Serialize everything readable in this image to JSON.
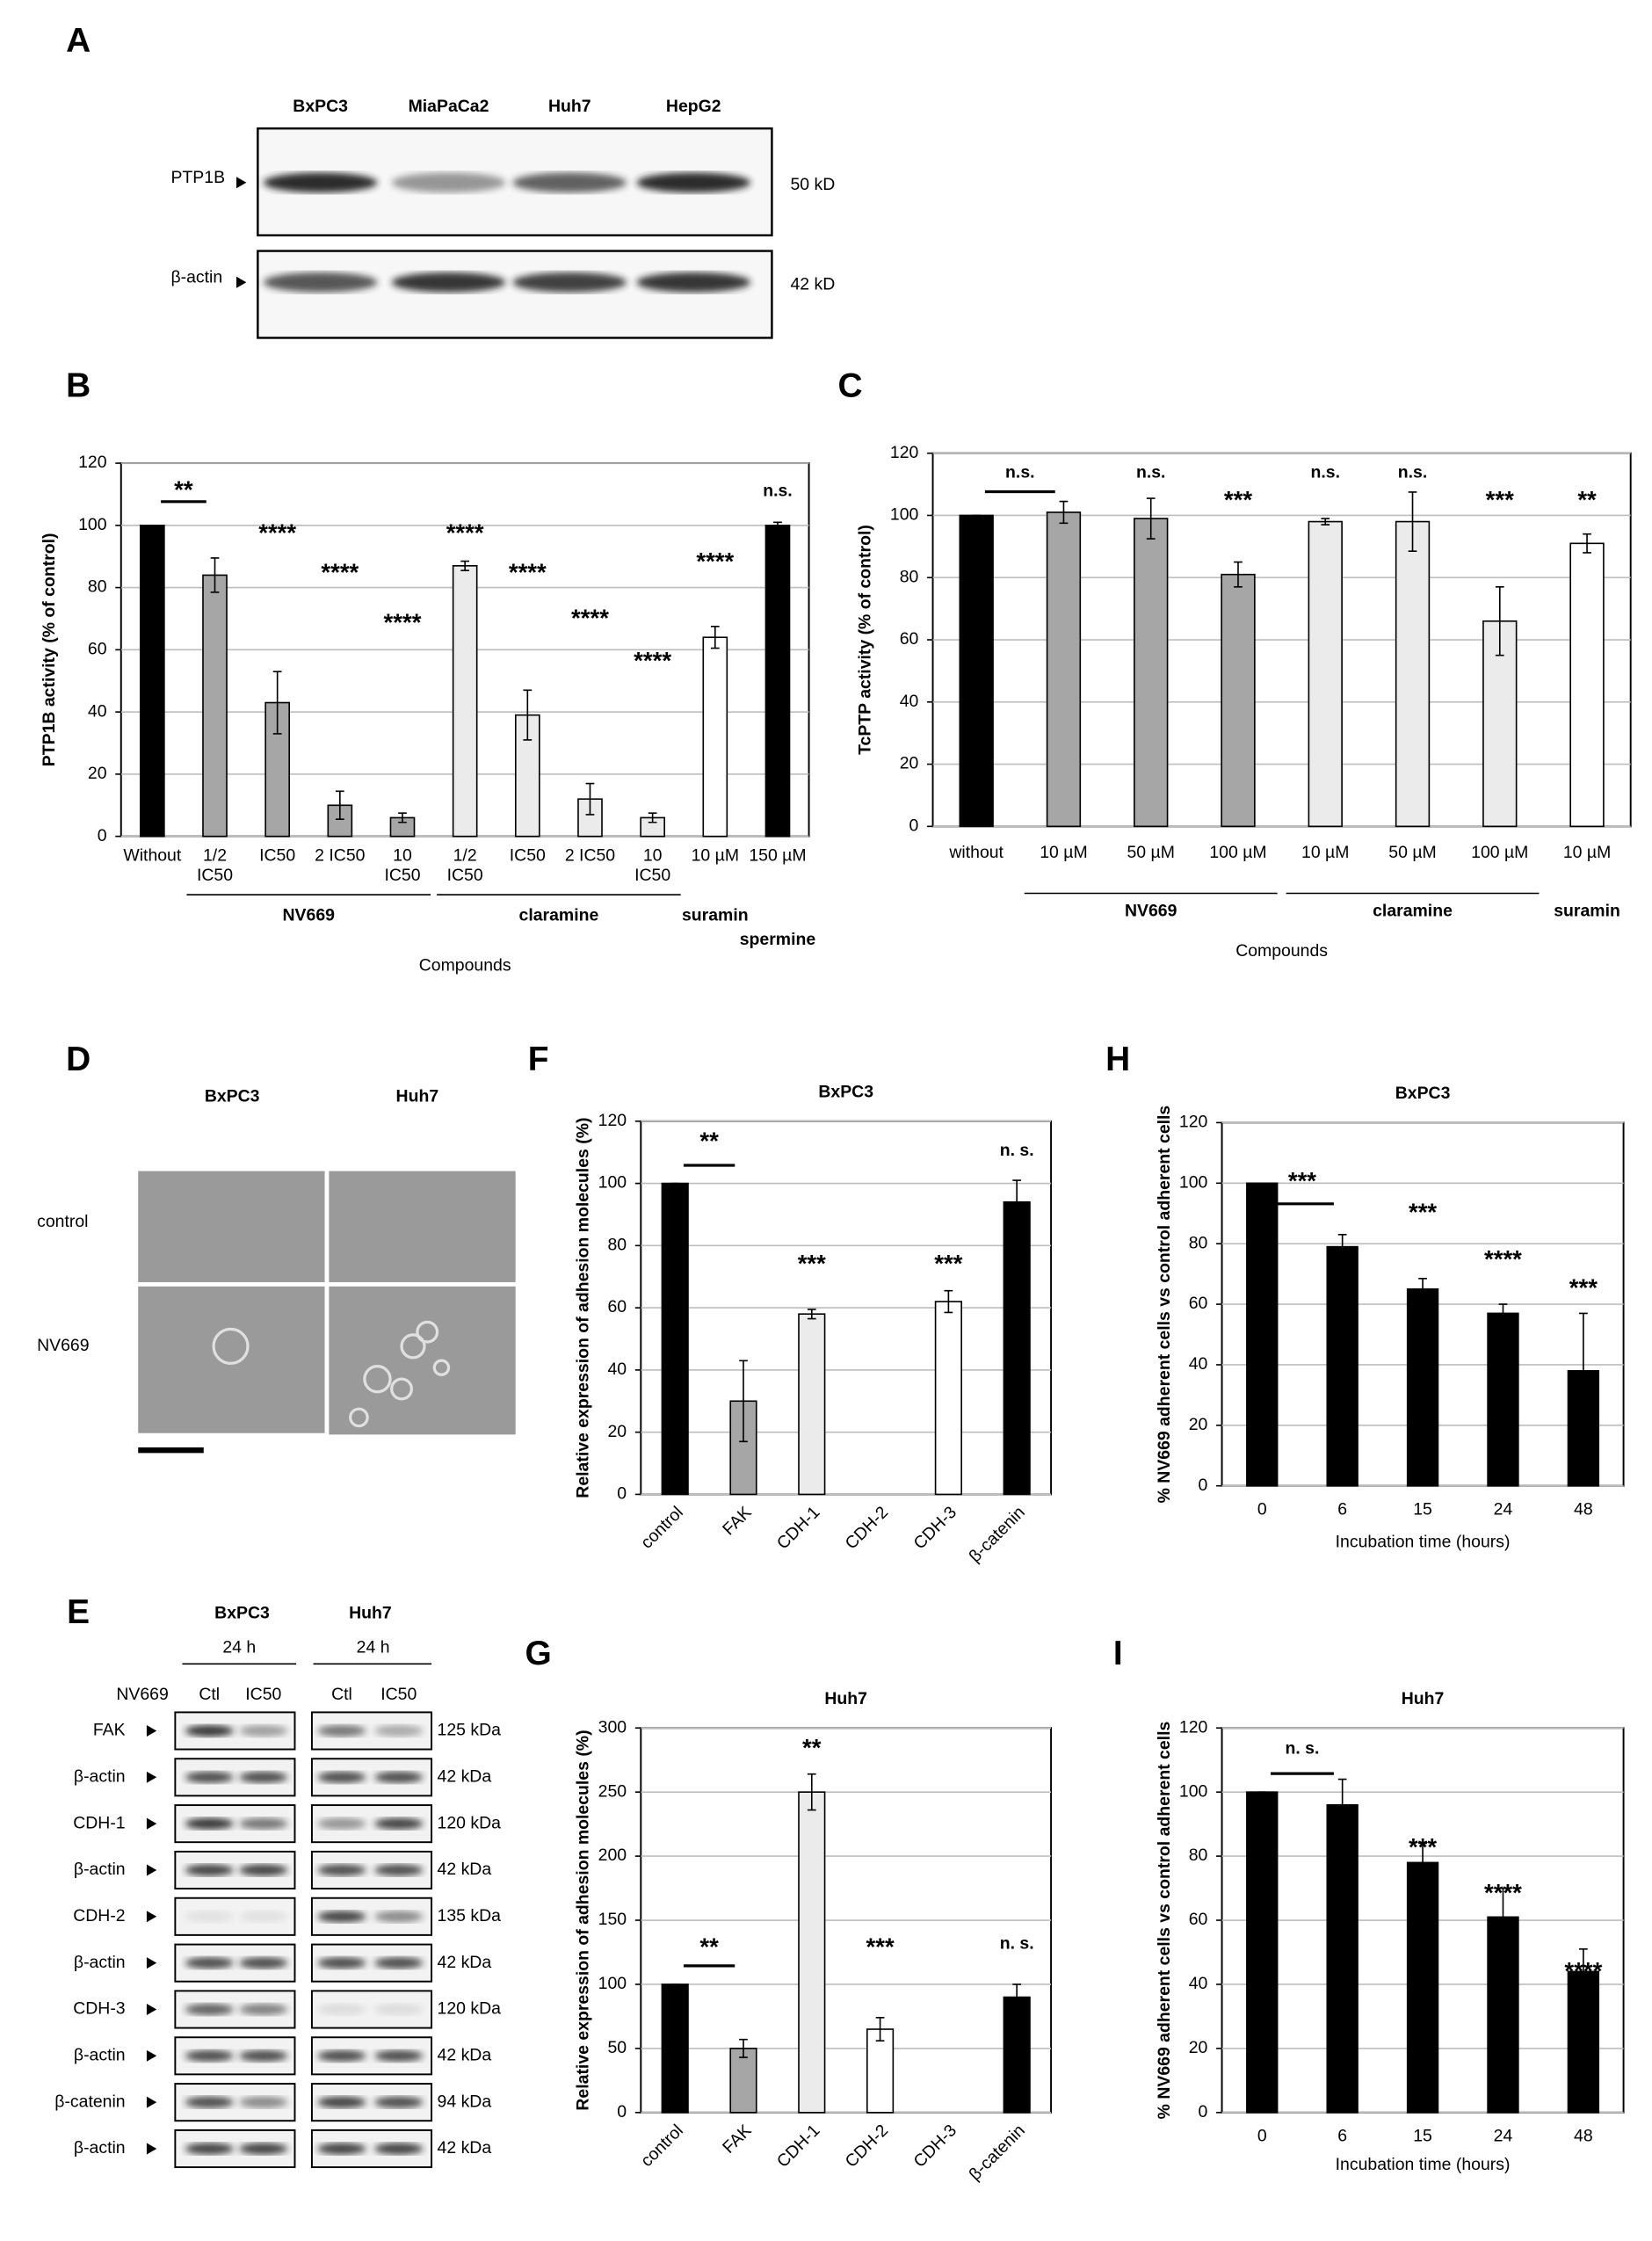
{
  "panel_labels": [
    "A",
    "B",
    "C",
    "D",
    "E",
    "F",
    "G",
    "H",
    "I"
  ],
  "blot_a": {
    "lanes": [
      "BxPC3",
      "MiaPaCa2",
      "Huh7",
      "HepG2"
    ],
    "rows": [
      {
        "protein": "PTP1B",
        "size": "50 kD"
      },
      {
        "protein": "β-actin",
        "size": "42 kD"
      }
    ]
  },
  "micrographs": {
    "columns": [
      "BxPC3",
      "Huh7"
    ],
    "rows": [
      "control",
      "NV669"
    ]
  },
  "blot_e": {
    "cell_lines": [
      "BxPC3",
      "Huh7"
    ],
    "times": [
      "24 h",
      "24 h"
    ],
    "treatment": "NV669",
    "lanes": [
      "Ctl",
      "IC50",
      "Ctl",
      "IC50"
    ],
    "rows": [
      {
        "protein": "FAK",
        "size": "125 kDa"
      },
      {
        "protein": "β-actin",
        "size": "42 kDa"
      },
      {
        "protein": "CDH-1",
        "size": "120 kDa"
      },
      {
        "protein": "β-actin",
        "size": "42 kDa"
      },
      {
        "protein": "CDH-2",
        "size": "135 kDa"
      },
      {
        "protein": "β-actin",
        "size": "42 kDa"
      },
      {
        "protein": "CDH-3",
        "size": "120 kDa"
      },
      {
        "protein": "β-actin",
        "size": "42 kDa"
      },
      {
        "protein": "β-catenin",
        "size": "94 kDa"
      },
      {
        "protein": "β-actin",
        "size": "42 kDa"
      }
    ]
  },
  "chart_data": [
    {
      "type": "bar",
      "y_label": "PTP1B activity (% of control)",
      "x_label": "Compounds",
      "categories": [
        "Without",
        [
          "1/2",
          "IC50"
        ],
        "IC50",
        "2 IC50",
        [
          "10",
          "IC50"
        ],
        [
          "1/2",
          "IC50"
        ],
        "IC50",
        "2 IC50",
        [
          "10",
          "IC50"
        ],
        "10 µM",
        "150 µM"
      ],
      "values": [
        100,
        84,
        43,
        10,
        6,
        87,
        39,
        12,
        6,
        64,
        100
      ],
      "errors": [
        0,
        5.5,
        10,
        4.5,
        1.5,
        1.5,
        8,
        5,
        1.5,
        3.5,
        1
      ],
      "colors": [
        "#000000",
        "#a6a6a6",
        "#a6a6a6",
        "#a6a6a6",
        "#a6a6a6",
        "#ebebeb",
        "#ebebeb",
        "#ebebeb",
        "#ebebeb",
        "#ffffff",
        "#000000"
      ],
      "significance": [
        null,
        "**",
        "****",
        "****",
        "****",
        "****",
        "****",
        "****",
        "****",
        "****",
        "n.s."
      ],
      "groups": [
        {
          "name": "NV669",
          "first": 1,
          "last": 4
        },
        {
          "name": "claramine",
          "first": 5,
          "last": 8
        },
        {
          "name": "suramin",
          "first": 9,
          "last": 9
        },
        {
          "name": "spermine",
          "first": 10,
          "last": 10
        }
      ],
      "ylim": [
        0,
        120
      ],
      "yticks": [
        0,
        20,
        40,
        60,
        80,
        100,
        120
      ],
      "grid": true
    },
    {
      "type": "bar",
      "y_label": "TcPTP activity (% of control)",
      "x_label": "Compounds",
      "categories": [
        "without",
        "10 µM",
        "50 µM",
        "100 µM",
        "10 µM",
        "50 µM",
        "100 µM",
        "10 µM"
      ],
      "values": [
        100,
        101,
        99,
        81,
        98,
        98,
        66,
        91
      ],
      "errors": [
        0,
        3.5,
        6.5,
        4,
        1,
        9.5,
        11,
        3
      ],
      "colors": [
        "#000000",
        "#a6a6a6",
        "#a6a6a6",
        "#a6a6a6",
        "#ebebeb",
        "#ebebeb",
        "#ebebeb",
        "#ffffff"
      ],
      "significance": [
        null,
        "n.s.",
        "n.s.",
        "***",
        "n.s.",
        "n.s.",
        "***",
        "**"
      ],
      "groups": [
        {
          "name": "NV669",
          "first": 1,
          "last": 3
        },
        {
          "name": "claramine",
          "first": 4,
          "last": 6
        },
        {
          "name": "suramin",
          "first": 7,
          "last": 7
        }
      ],
      "ylim": [
        0,
        120
      ],
      "yticks": [
        0,
        20,
        40,
        60,
        80,
        100,
        120
      ],
      "grid": true
    },
    {
      "type": "bar",
      "title": "BxPC3",
      "y_label": "Relative expression of adhesion molecules (%)",
      "categories": [
        "control",
        "FAK",
        "CDH-1",
        "CDH-2",
        "CDH-3",
        "β-catenin"
      ],
      "values": [
        100,
        30,
        58,
        null,
        62,
        94
      ],
      "errors": [
        0,
        13,
        1.5,
        null,
        3.5,
        7
      ],
      "colors": [
        "#000000",
        "#a6a6a6",
        "#ebebeb",
        null,
        "#ffffff",
        "#000000"
      ],
      "significance": [
        null,
        "**",
        "***",
        null,
        "***",
        "n. s."
      ],
      "ylim": [
        0,
        120
      ],
      "yticks": [
        0,
        20,
        40,
        60,
        80,
        100,
        120
      ],
      "grid": true
    },
    {
      "type": "bar",
      "title": "Huh7",
      "y_label": "Relative expression of adhesion molecules (%)",
      "categories": [
        "control",
        "FAK",
        "CDH-1",
        "CDH-2",
        "CDH-3",
        "β-catenin"
      ],
      "values": [
        100,
        50,
        250,
        65,
        null,
        90
      ],
      "errors": [
        0,
        7,
        14,
        9,
        null,
        10
      ],
      "colors": [
        "#000000",
        "#a6a6a6",
        "#ebebeb",
        "#ffffff",
        null,
        "#000000"
      ],
      "significance": [
        null,
        "**",
        "**",
        "***",
        null,
        "n. s."
      ],
      "ylim": [
        0,
        300
      ],
      "yticks": [
        0,
        50,
        100,
        150,
        200,
        250,
        300
      ],
      "grid": true
    },
    {
      "type": "bar",
      "title": "BxPC3",
      "y_label": "% NV669 adherent cells vs control adherent cells",
      "x_label": "Incubation time (hours)",
      "categories": [
        "0",
        "6",
        "15",
        "24",
        "48"
      ],
      "values": [
        100,
        79,
        65,
        57,
        38
      ],
      "errors": [
        0,
        4,
        3.5,
        3,
        19
      ],
      "colors": [
        "#000000",
        "#000000",
        "#000000",
        "#000000",
        "#000000"
      ],
      "significance": [
        null,
        "***",
        "***",
        "****",
        "***"
      ],
      "ylim": [
        0,
        120
      ],
      "yticks": [
        0,
        20,
        40,
        60,
        80,
        100,
        120
      ],
      "grid": true
    },
    {
      "type": "bar",
      "title": "Huh7",
      "y_label": "% NV669 adherent cells vs control adherent cells",
      "x_label": "Incubation time (hours)",
      "categories": [
        "0",
        "6",
        "15",
        "24",
        "48"
      ],
      "values": [
        100,
        96,
        78,
        61,
        44
      ],
      "errors": [
        0,
        8,
        6,
        9,
        7
      ],
      "colors": [
        "#000000",
        "#000000",
        "#000000",
        "#000000",
        "#000000"
      ],
      "significance": [
        null,
        "n. s.",
        "***",
        "****",
        "****"
      ],
      "ylim": [
        0,
        120
      ],
      "yticks": [
        0,
        20,
        40,
        60,
        80,
        100,
        120
      ],
      "grid": true
    }
  ]
}
